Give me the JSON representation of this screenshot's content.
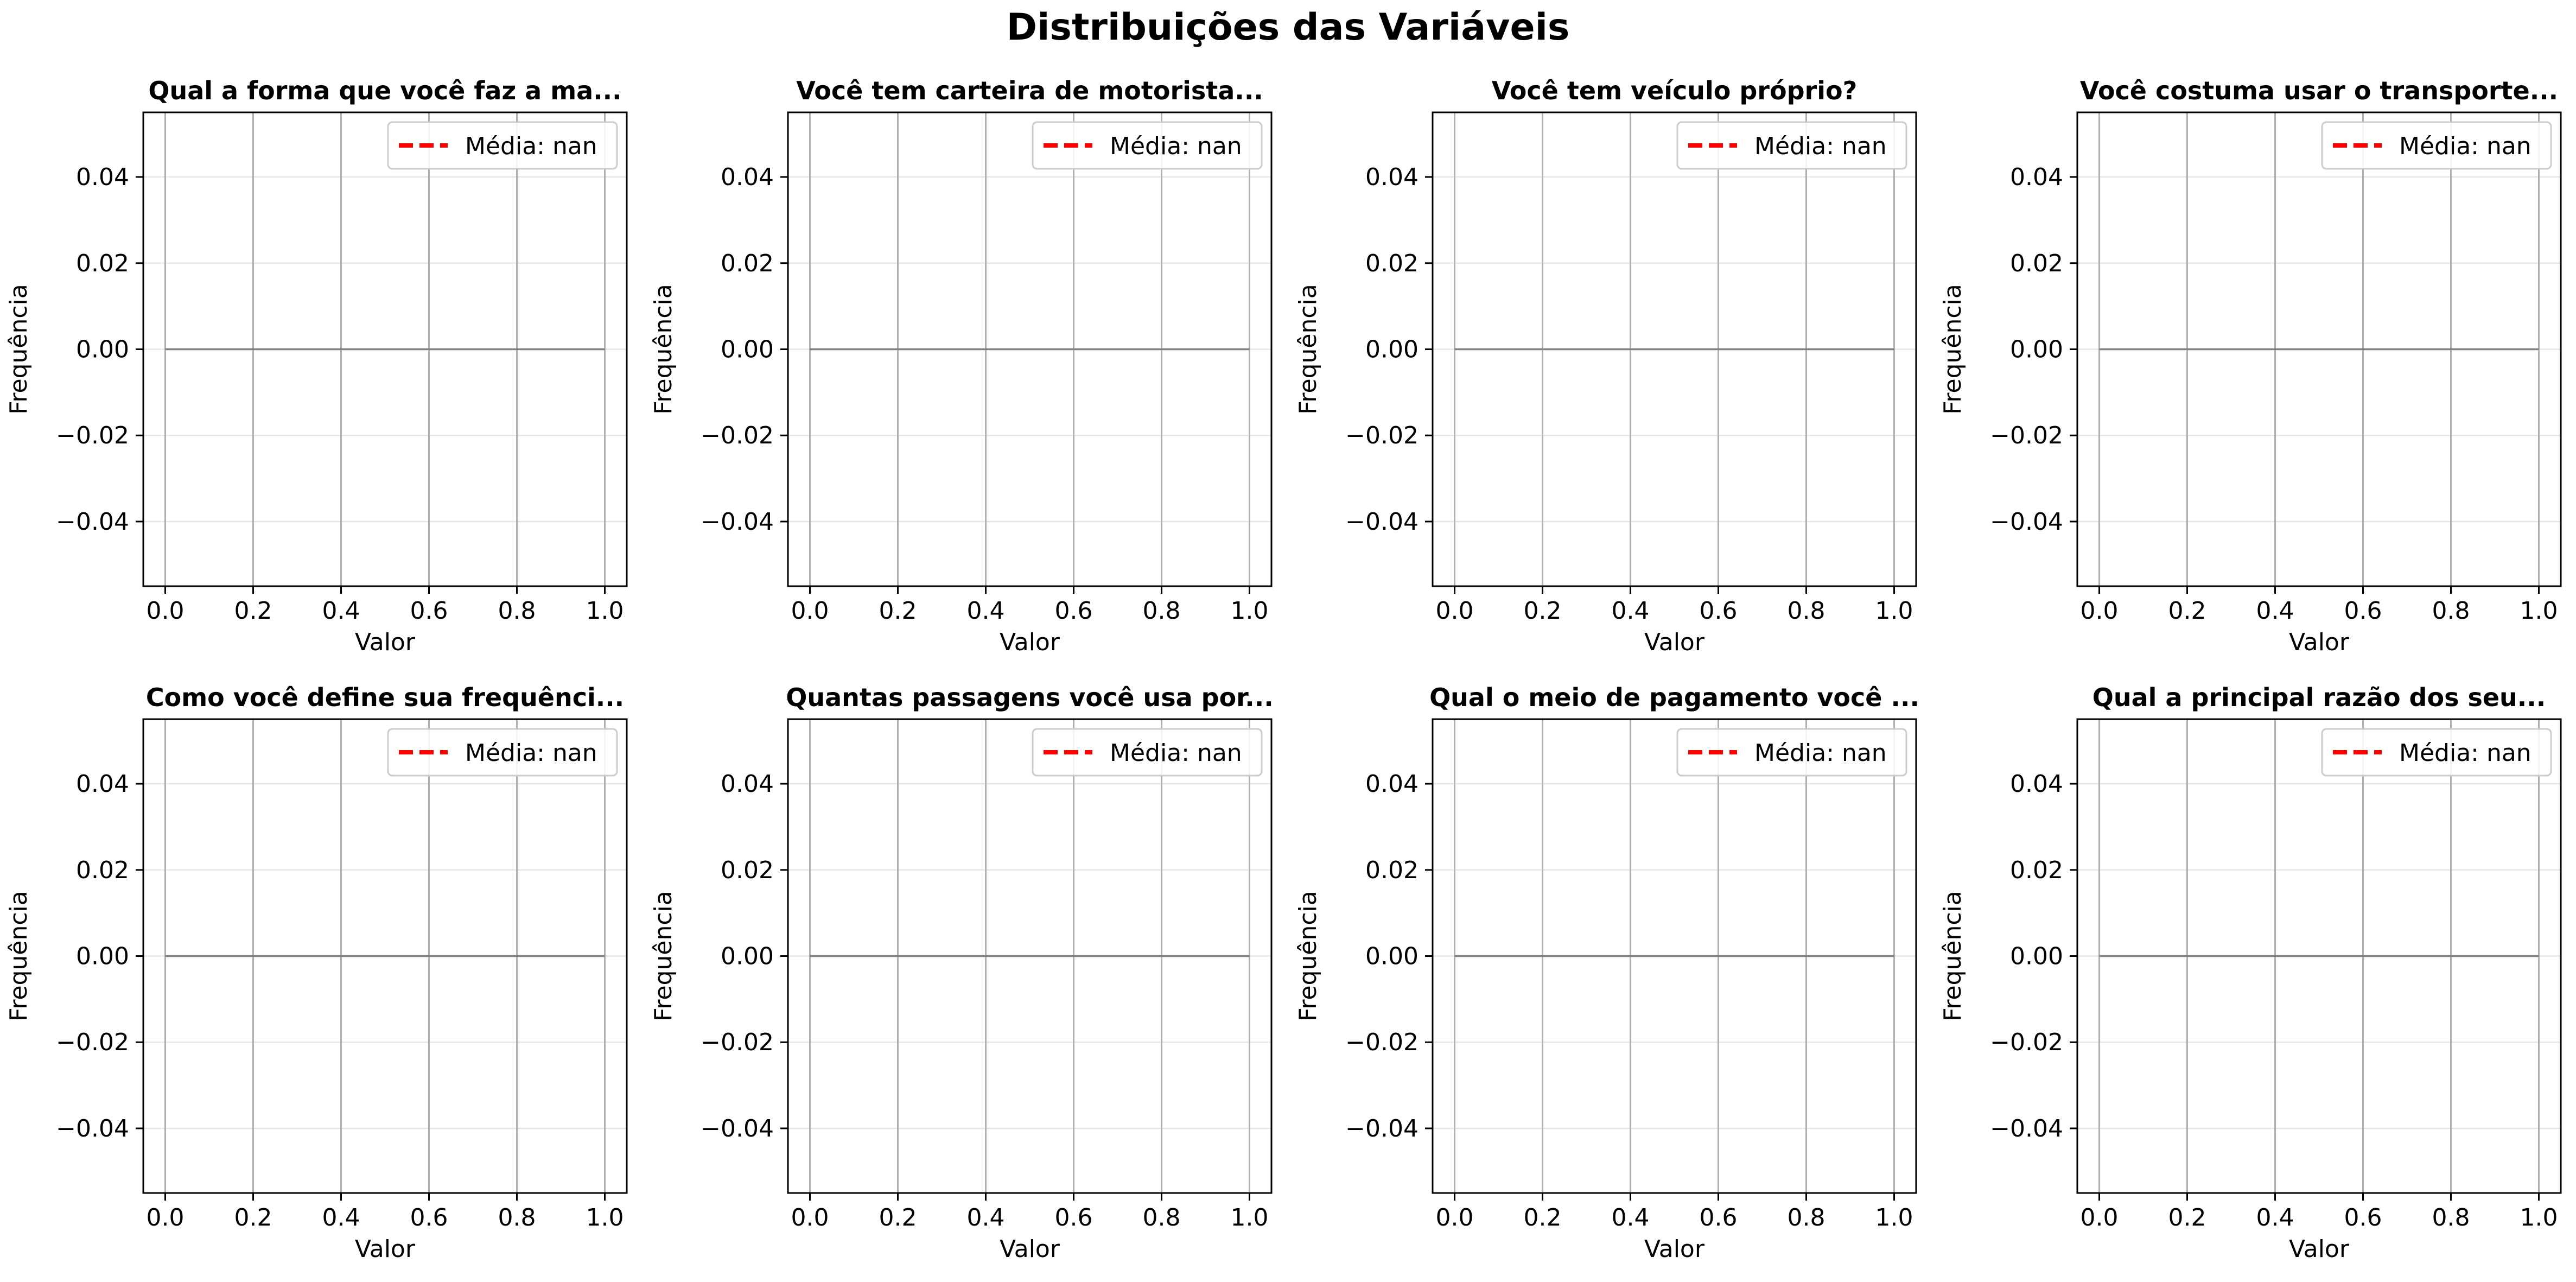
{
  "figure": {
    "title": "Distribuições das Variáveis"
  },
  "colors": {
    "mean_line": "#ff0000",
    "hist": "#808080",
    "grid": "#b0b0b0",
    "axes": "#000000"
  },
  "chart_data": [
    {
      "type": "bar",
      "title": "Qual a forma que você faz a ma...",
      "xlabel": "Valor",
      "ylabel": "Frequência",
      "xlim": [
        -0.05,
        1.05
      ],
      "ylim": [
        -0.055,
        0.055
      ],
      "xticks": [
        "0.0",
        "0.2",
        "0.4",
        "0.6",
        "0.8",
        "1.0"
      ],
      "yticks": [
        "0.04",
        "0.02",
        "0.00",
        "−0.02",
        "−0.04"
      ],
      "series": [
        {
          "values": []
        }
      ],
      "mean_label": "Média: nan",
      "grid": true,
      "legend": "upper right"
    },
    {
      "type": "bar",
      "title": "Você tem carteira de motorista...",
      "xlabel": "Valor",
      "ylabel": "Frequência",
      "xlim": [
        -0.05,
        1.05
      ],
      "ylim": [
        -0.055,
        0.055
      ],
      "xticks": [
        "0.0",
        "0.2",
        "0.4",
        "0.6",
        "0.8",
        "1.0"
      ],
      "yticks": [
        "0.04",
        "0.02",
        "0.00",
        "−0.02",
        "−0.04"
      ],
      "series": [
        {
          "values": []
        }
      ],
      "mean_label": "Média: nan",
      "grid": true,
      "legend": "upper right"
    },
    {
      "type": "bar",
      "title": "Você tem veículo próprio?",
      "xlabel": "Valor",
      "ylabel": "Frequência",
      "xlim": [
        -0.05,
        1.05
      ],
      "ylim": [
        -0.055,
        0.055
      ],
      "xticks": [
        "0.0",
        "0.2",
        "0.4",
        "0.6",
        "0.8",
        "1.0"
      ],
      "yticks": [
        "0.04",
        "0.02",
        "0.00",
        "−0.02",
        "−0.04"
      ],
      "series": [
        {
          "values": []
        }
      ],
      "mean_label": "Média: nan",
      "grid": true,
      "legend": "upper right"
    },
    {
      "type": "bar",
      "title": "Você costuma usar o transporte...",
      "xlabel": "Valor",
      "ylabel": "Frequência",
      "xlim": [
        -0.05,
        1.05
      ],
      "ylim": [
        -0.055,
        0.055
      ],
      "xticks": [
        "0.0",
        "0.2",
        "0.4",
        "0.6",
        "0.8",
        "1.0"
      ],
      "yticks": [
        "0.04",
        "0.02",
        "0.00",
        "−0.02",
        "−0.04"
      ],
      "series": [
        {
          "values": []
        }
      ],
      "mean_label": "Média: nan",
      "grid": true,
      "legend": "upper right"
    },
    {
      "type": "bar",
      "title": "Como você define sua frequênci...",
      "xlabel": "Valor",
      "ylabel": "Frequência",
      "xlim": [
        -0.05,
        1.05
      ],
      "ylim": [
        -0.055,
        0.055
      ],
      "xticks": [
        "0.0",
        "0.2",
        "0.4",
        "0.6",
        "0.8",
        "1.0"
      ],
      "yticks": [
        "0.04",
        "0.02",
        "0.00",
        "−0.02",
        "−0.04"
      ],
      "series": [
        {
          "values": []
        }
      ],
      "mean_label": "Média: nan",
      "grid": true,
      "legend": "upper right"
    },
    {
      "type": "bar",
      "title": "Quantas passagens você usa por...",
      "xlabel": "Valor",
      "ylabel": "Frequência",
      "xlim": [
        -0.05,
        1.05
      ],
      "ylim": [
        -0.055,
        0.055
      ],
      "xticks": [
        "0.0",
        "0.2",
        "0.4",
        "0.6",
        "0.8",
        "1.0"
      ],
      "yticks": [
        "0.04",
        "0.02",
        "0.00",
        "−0.02",
        "−0.04"
      ],
      "series": [
        {
          "values": []
        }
      ],
      "mean_label": "Média: nan",
      "grid": true,
      "legend": "upper right"
    },
    {
      "type": "bar",
      "title": "Qual o meio de pagamento você ...",
      "xlabel": "Valor",
      "ylabel": "Frequência",
      "xlim": [
        -0.05,
        1.05
      ],
      "ylim": [
        -0.055,
        0.055
      ],
      "xticks": [
        "0.0",
        "0.2",
        "0.4",
        "0.6",
        "0.8",
        "1.0"
      ],
      "yticks": [
        "0.04",
        "0.02",
        "0.00",
        "−0.02",
        "−0.04"
      ],
      "series": [
        {
          "values": []
        }
      ],
      "mean_label": "Média: nan",
      "grid": true,
      "legend": "upper right"
    },
    {
      "type": "bar",
      "title": "Qual a principal razão dos seu...",
      "xlabel": "Valor",
      "ylabel": "Frequência",
      "xlim": [
        -0.05,
        1.05
      ],
      "ylim": [
        -0.055,
        0.055
      ],
      "xticks": [
        "0.0",
        "0.2",
        "0.4",
        "0.6",
        "0.8",
        "1.0"
      ],
      "yticks": [
        "0.04",
        "0.02",
        "0.00",
        "−0.02",
        "−0.04"
      ],
      "series": [
        {
          "values": []
        }
      ],
      "mean_label": "Média: nan",
      "grid": true,
      "legend": "upper right"
    }
  ]
}
